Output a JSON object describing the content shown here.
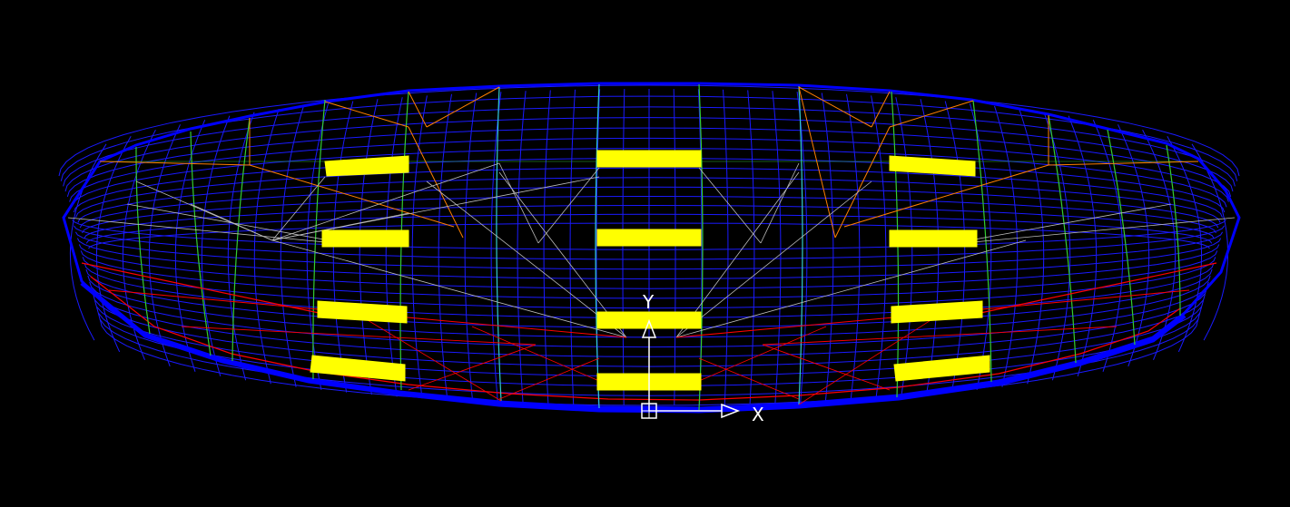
{
  "viewport": {
    "background": "#000000",
    "model": "wireframe-dome-structure"
  },
  "colors": {
    "mesh": "#1a1aff",
    "rim": "#0000ff",
    "rib_green": "#33cc33",
    "rib_cyan": "#33cccc",
    "brace_orange": "#ff7f00",
    "brace_red": "#ff0000",
    "brace_gray": "#bbbbbb",
    "beam": "#ffff00",
    "ucs": "#ffffff"
  },
  "ucs": {
    "x_label": "X",
    "y_label": "Y",
    "icon": "ucs-axis-icon"
  }
}
